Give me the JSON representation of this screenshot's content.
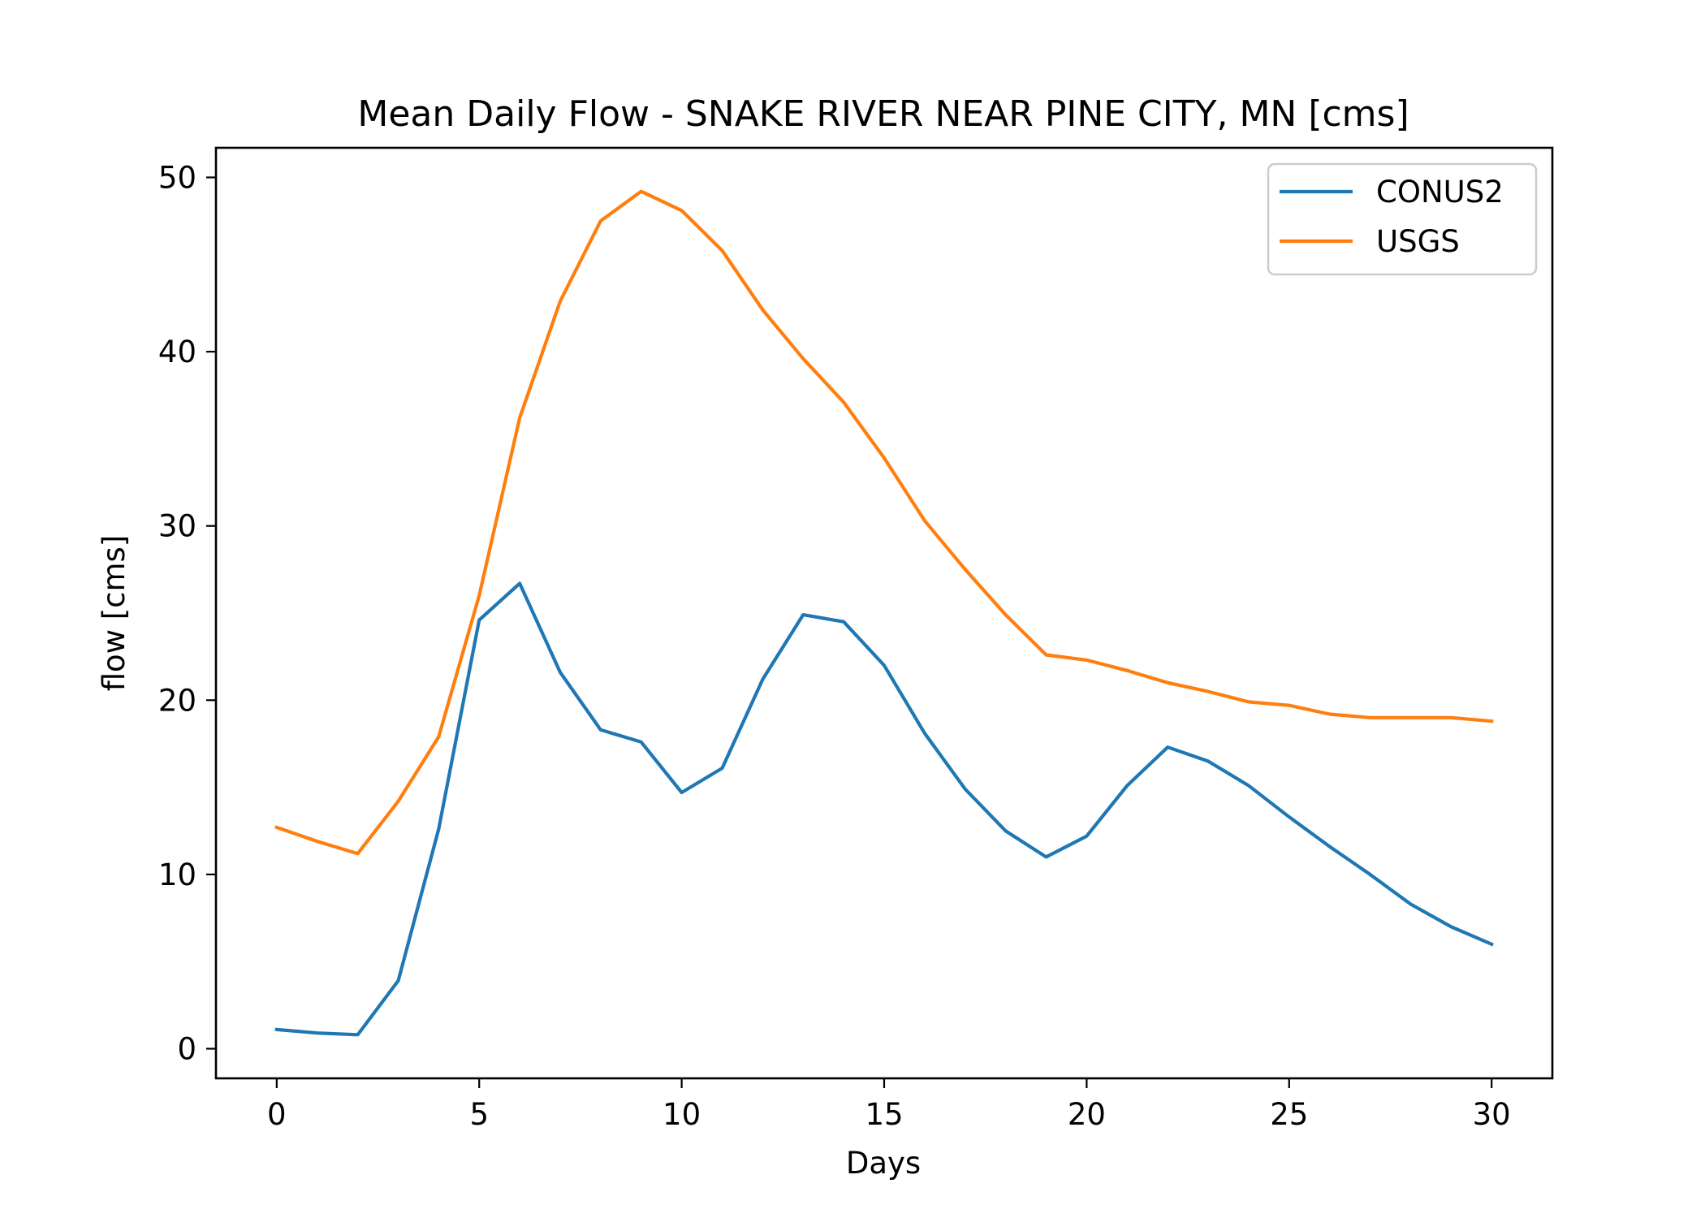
{
  "chart_data": {
    "type": "line",
    "title": "Mean Daily Flow - SNAKE RIVER NEAR PINE CITY, MN [cms]",
    "xlabel": "Days",
    "ylabel": "flow [cms]",
    "xlim": [
      -1.5,
      31.5
    ],
    "ylim": [
      -1.7,
      51.7
    ],
    "xticks": [
      0,
      5,
      10,
      15,
      20,
      25,
      30
    ],
    "yticks": [
      0,
      10,
      20,
      30,
      40,
      50
    ],
    "grid": false,
    "legend_position": "top-right",
    "x": [
      0,
      1,
      2,
      3,
      4,
      5,
      6,
      7,
      8,
      9,
      10,
      11,
      12,
      13,
      14,
      15,
      16,
      17,
      18,
      19,
      20,
      21,
      22,
      23,
      24,
      25,
      26,
      27,
      28,
      29,
      30
    ],
    "series": [
      {
        "name": "CONUS2",
        "color": "#1f77b4",
        "values": [
          1.1,
          0.9,
          0.8,
          3.9,
          12.6,
          24.6,
          26.7,
          21.6,
          18.3,
          17.6,
          14.7,
          16.1,
          21.2,
          24.9,
          24.5,
          22.0,
          18.1,
          14.9,
          12.5,
          11.0,
          12.2,
          15.1,
          17.3,
          16.5,
          15.1,
          13.3,
          11.6,
          10.0,
          8.3,
          7.0,
          6.0
        ]
      },
      {
        "name": "USGS",
        "color": "#ff7f0e",
        "values": [
          12.7,
          11.9,
          11.2,
          14.2,
          17.9,
          26.0,
          36.2,
          42.9,
          47.5,
          49.2,
          48.1,
          45.8,
          42.4,
          39.6,
          37.1,
          33.9,
          30.3,
          27.5,
          24.9,
          22.6,
          22.3,
          21.7,
          21.0,
          20.5,
          19.9,
          19.7,
          19.2,
          19.0,
          19.0,
          19.0,
          18.8
        ]
      }
    ]
  }
}
